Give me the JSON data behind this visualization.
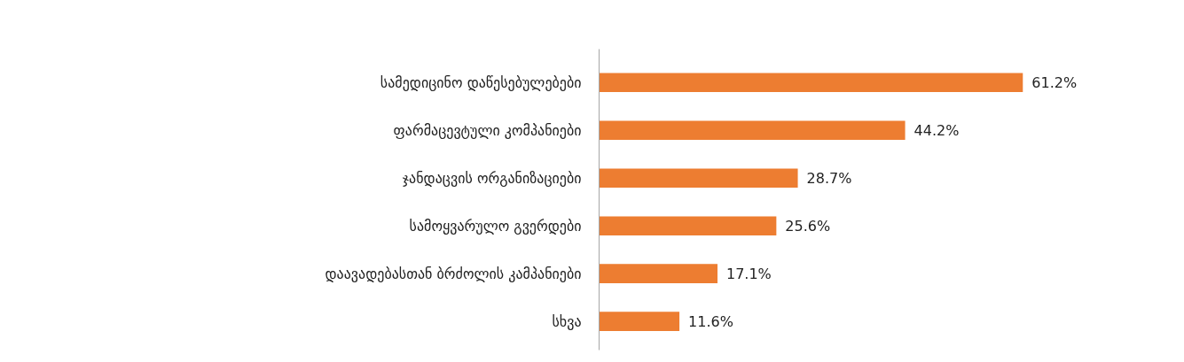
{
  "chart_data": {
    "type": "bar",
    "orientation": "horizontal",
    "categories": [
      "სამედიცინო დაწესებულებები",
      "ფარმაცევტული კომპანიები",
      "ჯანდაცვის ორგანიზაციები",
      "სამოყვარულო გვერდები",
      "დაავადებასთან ბრძოლის კამპანიები",
      "სხვა"
    ],
    "values": [
      61.2,
      44.2,
      28.7,
      25.6,
      17.1,
      11.6
    ],
    "value_labels": [
      "61.2%",
      "44.2%",
      "28.7%",
      "25.6%",
      "17.1%",
      "11.6%"
    ],
    "color": "#ed7d31"
  }
}
